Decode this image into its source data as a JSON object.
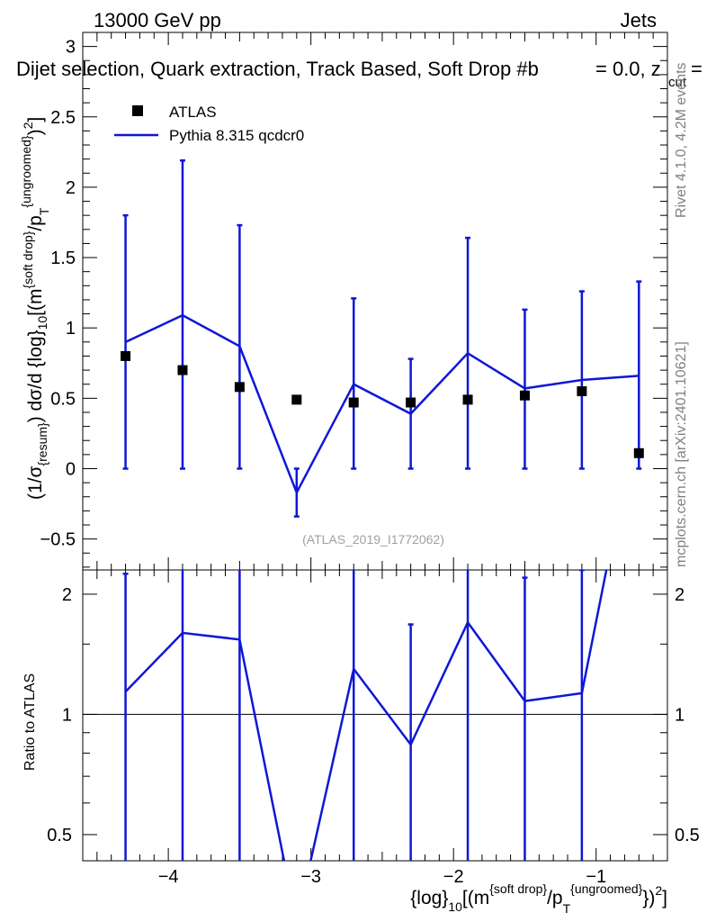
{
  "header": {
    "left": "13000 GeV pp",
    "right": "Jets",
    "subtitle": "Dijet selection, Quark extraction, Track Based, Soft Drop #b",
    "subtitle2": "= 0.0, z",
    "subtitle2_sub": "cut",
    "subtitle2_end": "="
  },
  "side_labels": {
    "rivet": "Rivet 4.1.0,  4.2M events",
    "mcplots": "mcplots.cern.ch [arXiv:2401.10621]",
    "watermark": "(ATLAS_2019_I1772062)"
  },
  "axes": {
    "ylabel_parts": [
      "(1/σ",
      "{resum}",
      ") dσ/d {log}",
      "10",
      "[(m",
      "{soft drop}",
      "/p",
      "T",
      "{ungroomed}",
      ")",
      "2",
      "]"
    ],
    "ratio_ylabel": "Ratio to ATLAS",
    "xlabel_parts": [
      "{log}",
      "10",
      "[(m",
      "{soft drop}",
      "/p",
      "T",
      "{ungroomed}",
      "})",
      "2",
      "]"
    ]
  },
  "legend": {
    "atlas": "ATLAS",
    "pythia": "Pythia 8.315 qcdcr0"
  },
  "colors": {
    "mc": "#0f17d6",
    "data": "#000000"
  },
  "chart_data": {
    "type": "scatter",
    "xlim": [
      -4.6,
      -0.5
    ],
    "ylim": [
      -0.72,
      3.1
    ],
    "ratio_ylim": [
      0.43,
      2.3
    ],
    "ratio_log": true,
    "xticks": [
      -4,
      -3,
      -2,
      -1
    ],
    "xtick_labels": [
      "−4",
      "−3",
      "−2",
      "−1"
    ],
    "yticks": [
      -0.5,
      0,
      0.5,
      1,
      1.5,
      2,
      2.5,
      3
    ],
    "ytick_labels": [
      "−0.5",
      "0",
      "0.5",
      "1",
      "1.5",
      "2",
      "2.5",
      "3"
    ],
    "ratio_yticks": [
      0.5,
      1,
      2
    ],
    "ratio_ytick_labels": [
      "0.5",
      "1",
      "2"
    ],
    "bin_edges": [
      -4.5,
      -4.1,
      -3.7,
      -3.3,
      -2.9,
      -2.5,
      -2.1,
      -1.7,
      -1.3,
      -0.9,
      -0.5
    ],
    "series": [
      {
        "name": "ATLAS",
        "x": [
          -4.3,
          -3.9,
          -3.5,
          -3.1,
          -2.7,
          -2.3,
          -1.9,
          -1.5,
          -1.1,
          -0.7
        ],
        "y": [
          0.8,
          0.7,
          0.58,
          0.49,
          0.47,
          0.47,
          0.49,
          0.52,
          0.55,
          0.11
        ],
        "yerr_lo": [
          0.8,
          0.7,
          0.58,
          0.0,
          0.47,
          0.47,
          0.49,
          0.52,
          0.55,
          0.11
        ],
        "yerr_hi": [
          1.0,
          1.49,
          1.15,
          0.0,
          0.74,
          0.31,
          1.15,
          0.61,
          0.71,
          1.22
        ]
      },
      {
        "name": "Pythia 8.315 qcdcr0",
        "x": [
          -4.3,
          -3.9,
          -3.5,
          -3.1,
          -2.7,
          -2.3,
          -1.9,
          -1.5,
          -1.1,
          -0.7
        ],
        "y": [
          0.9,
          1.09,
          0.87,
          -0.17,
          0.6,
          0.39,
          0.82,
          0.57,
          0.63,
          0.66
        ],
        "ratio": [
          1.14,
          1.6,
          1.54,
          -0.35,
          1.3,
          0.84,
          1.7,
          1.08,
          1.13,
          5.9
        ],
        "ratio_err_lo": [
          1.14,
          1.6,
          1.54,
          0.0,
          1.3,
          0.84,
          1.7,
          1.08,
          1.13,
          0.0
        ],
        "ratio_err_hi": [
          2.25,
          3.5,
          3.3,
          0.0,
          3.0,
          1.68,
          3.5,
          2.2,
          2.3,
          0.0
        ]
      }
    ]
  }
}
